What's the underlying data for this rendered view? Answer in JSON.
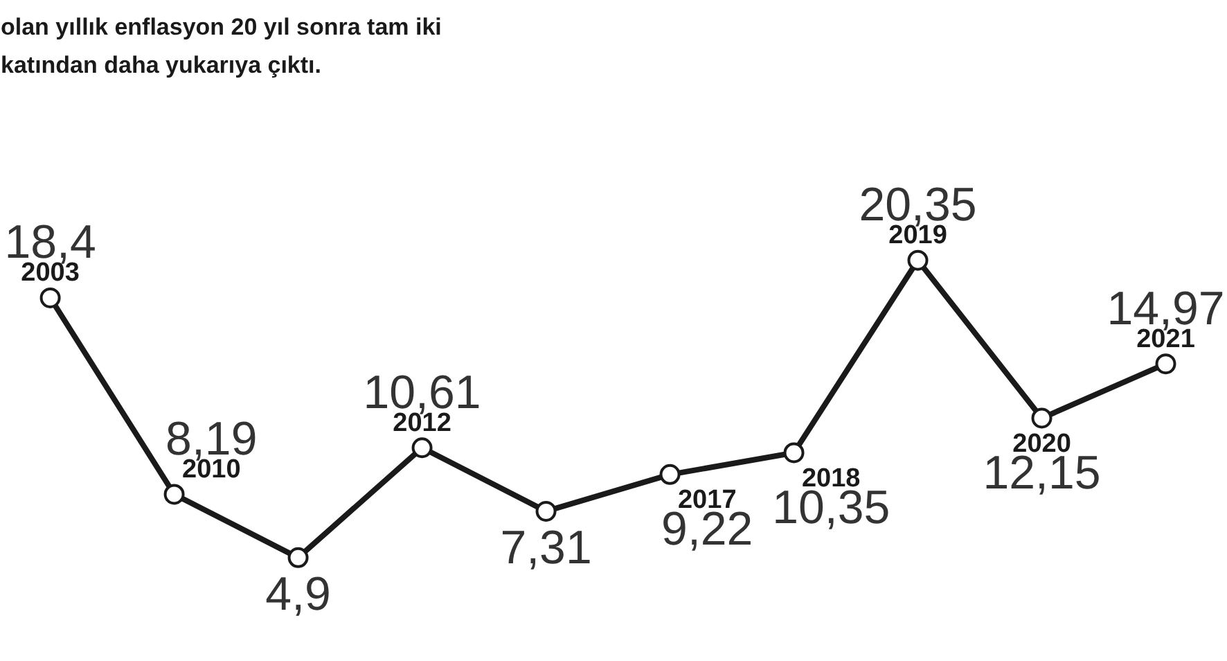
{
  "chart_data": {
    "type": "line",
    "title": "olan yıllık enflasyon 20 yıl sonra tam iki\nkatından daha yukarıya çıktı.",
    "categories": [
      "2003",
      "2010",
      null,
      "2012",
      null,
      "2017",
      "2018",
      "2019",
      "2020",
      "2021"
    ],
    "series": [
      {
        "color": "#1a1a1a",
        "values": [
          18.4,
          8.19,
          4.9,
          10.61,
          7.31,
          9.22,
          10.35,
          20.35,
          12.15,
          14.97
        ],
        "value_labels": [
          "18,4",
          "8,19",
          "4,9",
          "10,61",
          "7,31",
          "9,22",
          "10,35",
          "20,35",
          "12,15",
          "14,97"
        ]
      }
    ],
    "data_labels": true,
    "marker": "circle",
    "line_style": "solid",
    "grid": false
  }
}
